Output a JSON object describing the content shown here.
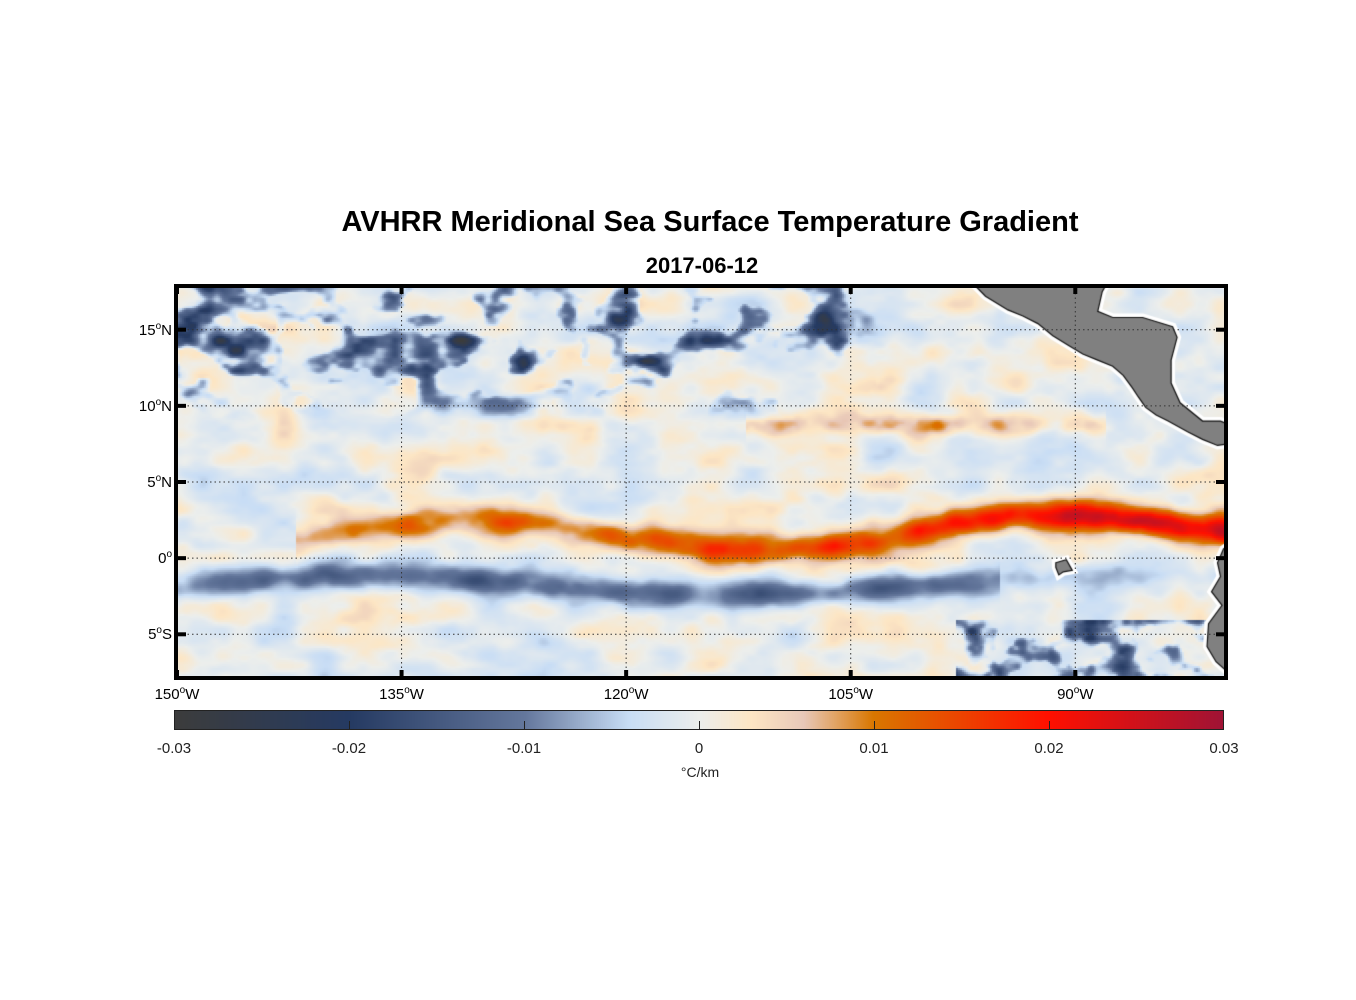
{
  "chart_data": {
    "type": "heatmap",
    "title": "AVHRR Meridional Sea Surface Temperature Gradient",
    "subtitle": "2017-06-12",
    "xlabel": "",
    "ylabel": "",
    "x_range_deg_lon": [
      -150.2,
      -79.8
    ],
    "y_range_deg_lat": [
      -8,
      18
    ],
    "grid": true,
    "x_ticks": [
      {
        "value": -150,
        "num": "150",
        "hemi": "W"
      },
      {
        "value": -135,
        "num": "135",
        "hemi": "W"
      },
      {
        "value": -120,
        "num": "120",
        "hemi": "W"
      },
      {
        "value": -105,
        "num": "105",
        "hemi": "W"
      },
      {
        "value": -90,
        "num": "90",
        "hemi": "W"
      }
    ],
    "y_ticks": [
      {
        "value": 15,
        "num": "15",
        "hemi": "N"
      },
      {
        "value": 10,
        "num": "10",
        "hemi": "N"
      },
      {
        "value": 5,
        "num": "5",
        "hemi": "N"
      },
      {
        "value": 0,
        "num": "0",
        "hemi": ""
      },
      {
        "value": -5,
        "num": "5",
        "hemi": "S"
      }
    ],
    "degree_symbol": "o",
    "colorbar": {
      "min": -0.03,
      "max": 0.03,
      "ticks": [
        "-0.03",
        "-0.02",
        "-0.01",
        "0",
        "0.01",
        "0.02",
        "0.03"
      ],
      "tick_values": [
        -0.03,
        -0.02,
        -0.01,
        0,
        0.01,
        0.02,
        0.03
      ],
      "units": "°C/km",
      "colors": [
        {
          "v": -0.03,
          "c": "#3c3c3c"
        },
        {
          "v": -0.02,
          "c": "#253a62"
        },
        {
          "v": -0.01,
          "c": "#64779c"
        },
        {
          "v": -0.004,
          "c": "#c8ddf5"
        },
        {
          "v": 0,
          "c": "#eceeec"
        },
        {
          "v": 0.003,
          "c": "#fde6c4"
        },
        {
          "v": 0.006,
          "c": "#e8c8b8"
        },
        {
          "v": 0.01,
          "c": "#d97700"
        },
        {
          "v": 0.02,
          "c": "#ff1000"
        },
        {
          "v": 0.03,
          "c": "#a01335"
        }
      ]
    },
    "land_color": "#808080",
    "features": [
      {
        "name": "equatorial-front",
        "sign": "positive",
        "value": 0.02,
        "lon_range": [
          -140,
          -80
        ],
        "lat_range": [
          0,
          5
        ]
      },
      {
        "name": "south-equatorial-cold-band",
        "sign": "negative",
        "value": -0.012,
        "lon_range": [
          -150,
          -100
        ],
        "lat_range": [
          -3,
          0
        ]
      },
      {
        "name": "northern-cold-eddies",
        "sign": "negative",
        "value": -0.015,
        "lon_range": [
          -150,
          -105
        ],
        "lat_range": [
          10,
          18
        ]
      },
      {
        "name": "ten-north-warm-band",
        "sign": "positive",
        "value": 0.01,
        "lon_range": [
          -110,
          -95
        ],
        "lat_range": [
          7,
          10
        ]
      }
    ],
    "land": [
      {
        "name": "central-america",
        "lat_range": [
          8,
          18
        ],
        "lon_range": [
          -97,
          -80
        ]
      },
      {
        "name": "south-america",
        "lat_range": [
          -8,
          0
        ],
        "lon_range": [
          -81,
          -80
        ]
      },
      {
        "name": "galapagos",
        "lat": -0.5,
        "lon": -90.5
      }
    ]
  }
}
